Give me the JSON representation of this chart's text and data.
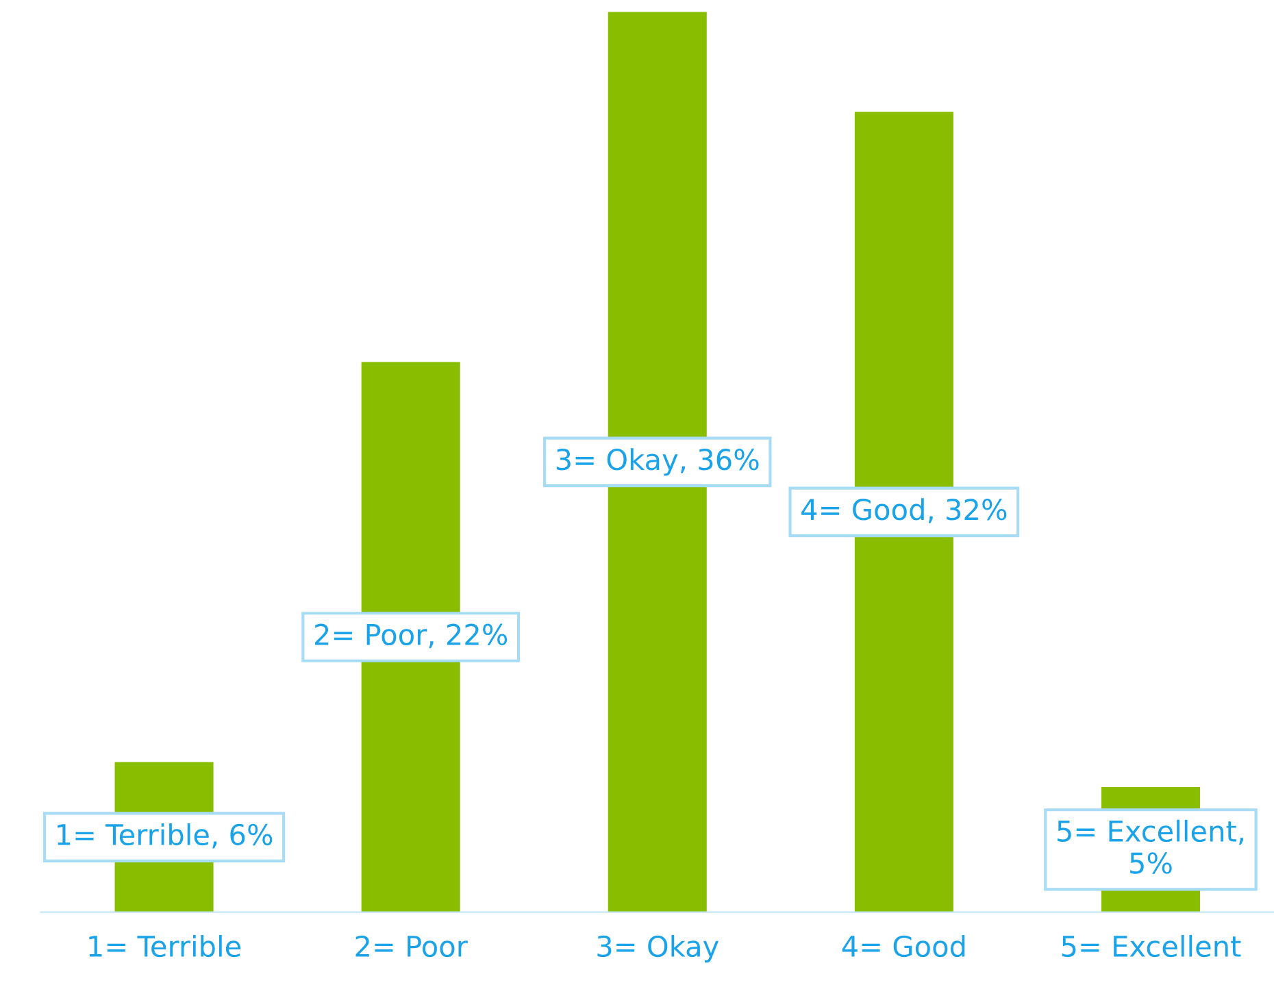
{
  "chart_data": {
    "type": "bar",
    "categories": [
      "1= Terrible",
      "2= Poor",
      "3= Okay",
      "4= Good",
      "5= Excellent"
    ],
    "values": [
      6,
      22,
      36,
      32,
      5
    ],
    "value_labels": [
      "1= Terrible, 6%",
      "2= Poor, 22%",
      "3= Okay, 36%",
      "4= Good, 32%",
      "5= Excellent,\n5%"
    ],
    "color": "#88bd00",
    "grid": false,
    "legend": false
  }
}
